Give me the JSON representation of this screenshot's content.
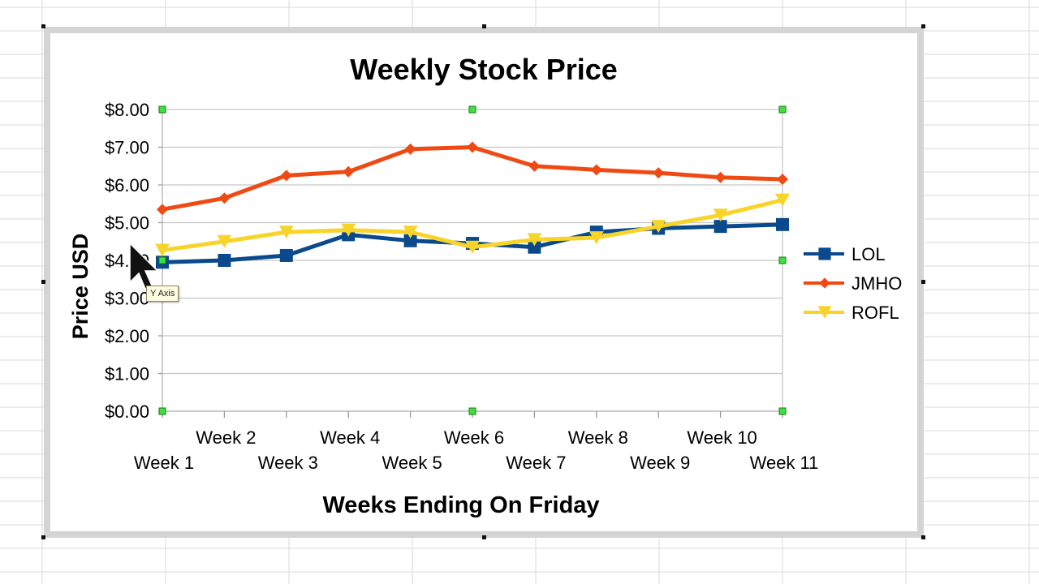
{
  "chart_data": {
    "type": "line",
    "title": "Weekly Stock Price",
    "xlabel": "Weeks Ending On Friday",
    "ylabel": "Price USD",
    "categories": [
      "Week 1",
      "Week 2",
      "Week 3",
      "Week 4",
      "Week 5",
      "Week 6",
      "Week 7",
      "Week 8",
      "Week 9",
      "Week 10",
      "Week 11"
    ],
    "ylim": [
      0,
      8
    ],
    "ytick_labels": [
      "$0.00",
      "$1.00",
      "$2.00",
      "$3.00",
      "$4.00",
      "$5.00",
      "$6.00",
      "$7.00",
      "$8.00"
    ],
    "grid": true,
    "legend": "right",
    "series": [
      {
        "name": "LOL",
        "color": "#0a4a8c",
        "marker": "square",
        "values": [
          3.95,
          4.0,
          4.13,
          4.68,
          4.52,
          4.45,
          4.35,
          4.75,
          4.85,
          4.9,
          4.95
        ]
      },
      {
        "name": "JMHO",
        "color": "#f04a14",
        "marker": "diamond",
        "values": [
          5.35,
          5.65,
          6.25,
          6.35,
          6.95,
          7.0,
          6.5,
          6.4,
          6.32,
          6.2,
          6.15
        ]
      },
      {
        "name": "ROFL",
        "color": "#f8d42a",
        "marker": "triangle-down",
        "values": [
          4.27,
          4.5,
          4.75,
          4.8,
          4.75,
          4.35,
          4.55,
          4.6,
          4.9,
          5.2,
          5.6
        ]
      }
    ]
  },
  "tooltip": {
    "text": "Y Axis"
  },
  "icons": {
    "cursor": "mouse-pointer-icon"
  }
}
